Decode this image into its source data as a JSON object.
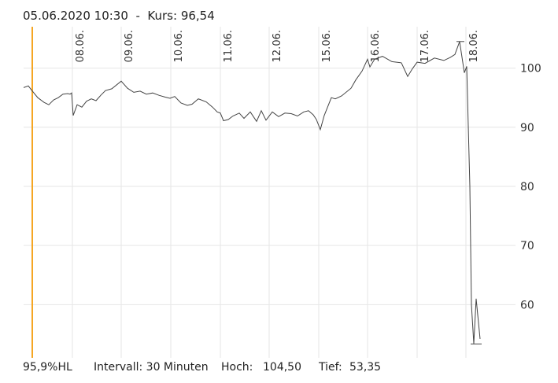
{
  "header": {
    "date": "05.06.2020 10:30",
    "separator": "-",
    "price_label": "Kurs:",
    "price": "96,54"
  },
  "footer": {
    "stat": "95,9%HL",
    "interval": "Intervall: 30 Minuten",
    "high_label": "Hoch:",
    "high": "104,50",
    "low_label": "Tief:",
    "low": "53,35"
  },
  "colors": {
    "price_line": "#444444",
    "cursor_line": "#f5a623",
    "grid": "#e6e6e6",
    "text": "#333333"
  },
  "chart_data": {
    "type": "line",
    "title": "",
    "xlabel": "",
    "ylabel": "",
    "ylim": [
      51,
      107
    ],
    "y_ticks": [
      100,
      90,
      80,
      70,
      60
    ],
    "x_ticks": [
      "08.06.",
      "09.06.",
      "10.06.",
      "11.06.",
      "12.06.",
      "15.06.",
      "16.06.",
      "17.06.",
      "18.06."
    ],
    "grid": true,
    "cursor_date": "05.06.2020 10:30",
    "series": [
      {
        "values": [
          96.7,
          97.0,
          96.3,
          95.0,
          94.2,
          93.8,
          94.6,
          95.0,
          95.6,
          95.7,
          95.6,
          95.8,
          92.0,
          93.8,
          93.4,
          94.4,
          94.8,
          94.5,
          95.4,
          96.2,
          96.5,
          97.8,
          96.6,
          95.9,
          96.1,
          95.6,
          95.8,
          95.4,
          95.1,
          94.9,
          95.2,
          94.1,
          93.7,
          93.9,
          94.8,
          94.3,
          93.4,
          92.6,
          92.4,
          91.1,
          91.3,
          91.9,
          92.4,
          91.5,
          92.6,
          91.0,
          92.8,
          91.2,
          92.6,
          91.8,
          92.4,
          92.3,
          91.9,
          92.6,
          92.8,
          92.1,
          91.3,
          89.6,
          92.0,
          95.0,
          94.8,
          95.3,
          96.6,
          98.0,
          99.5,
          101.5,
          100.2,
          101.5,
          102.0,
          101.1,
          100.9,
          98.6,
          99.9,
          101.0,
          100.8,
          101.7,
          101.3,
          101.8,
          102.3,
          104.5,
          99.2,
          100.3,
          80.0,
          60.0,
          53.4,
          61.0,
          54.2
        ]
      }
    ]
  }
}
